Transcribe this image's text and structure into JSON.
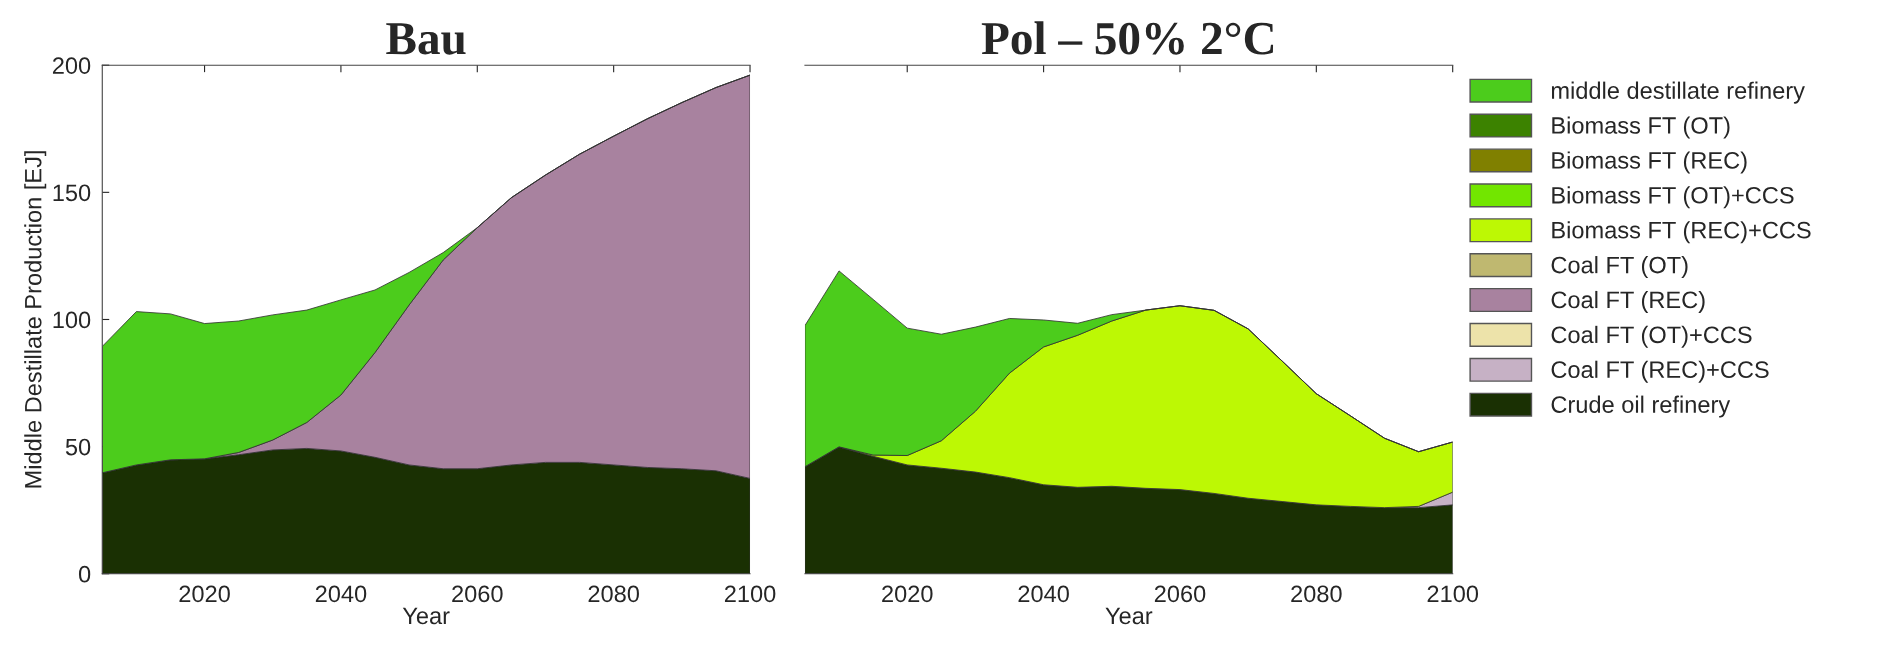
{
  "chart_data": [
    {
      "type": "area",
      "stacked": true,
      "title": "Bau",
      "xlabel": "Year",
      "ylabel": "Middle Destillate Production [EJ]",
      "x": [
        2005,
        2010,
        2015,
        2020,
        2025,
        2030,
        2035,
        2040,
        2045,
        2050,
        2055,
        2060,
        2065,
        2070,
        2075,
        2080,
        2085,
        2090,
        2095,
        2100
      ],
      "xlim": [
        2005,
        2100
      ],
      "xticks": [
        2020,
        2040,
        2060,
        2080,
        2100
      ],
      "ylim": [
        0,
        200
      ],
      "yticks": [
        0,
        50,
        100,
        150,
        200
      ],
      "grid": false,
      "series": [
        {
          "color": "#1a3003",
          "values": [
            39.7,
            42.8,
            44.8,
            45.2,
            46.8,
            48.7,
            49.3,
            48.3,
            45.8,
            42.8,
            41.3,
            41.3,
            42.8,
            43.8,
            43.8,
            42.8,
            41.8,
            41.3,
            40.5,
            37.5
          ]
        },
        {
          "color": "#a8829f",
          "values": [
            0,
            0,
            0,
            0,
            0.9,
            3.9,
            10.2,
            22.0,
            41.2,
            62.9,
            82.1,
            94.8,
            105.1,
            113.0,
            121.2,
            129.3,
            137.2,
            144.0,
            150.7,
            158.6
          ]
        },
        {
          "color": "#4ccc1c",
          "values": [
            49.7,
            60.3,
            57.4,
            53.2,
            51.7,
            49.2,
            44.2,
            37.4,
            24.6,
            12.8,
            2.9,
            0,
            0,
            0,
            0,
            0,
            0,
            0,
            0,
            0
          ]
        }
      ]
    },
    {
      "type": "area",
      "stacked": true,
      "title": "Pol – 50% 2°C",
      "xlabel": "Year",
      "x": [
        2005,
        2010,
        2015,
        2020,
        2025,
        2030,
        2035,
        2040,
        2045,
        2050,
        2055,
        2060,
        2065,
        2070,
        2075,
        2080,
        2085,
        2090,
        2095,
        2100
      ],
      "xlim": [
        2005,
        2100
      ],
      "xticks": [
        2020,
        2040,
        2060,
        2080,
        2100
      ],
      "ylim": [
        0,
        200
      ],
      "yticks": [
        0,
        50,
        100,
        150,
        200
      ],
      "tick_labels": "x",
      "grid": false,
      "legend": "right",
      "series": [
        {
          "name": "Crude oil refinery",
          "color": "#1a3003",
          "values": [
            42.1,
            49.9,
            46.2,
            42.8,
            41.5,
            40.0,
            37.8,
            35.0,
            34.0,
            34.4,
            33.6,
            33.1,
            31.6,
            29.7,
            28.4,
            27.1,
            26.5,
            26.0,
            26.0,
            27.1
          ]
        },
        {
          "name": "Coal FT (REC)+CCS",
          "color": "#c6b1c5",
          "values": [
            0,
            0,
            0,
            0,
            0,
            0,
            0,
            0,
            0,
            0,
            0,
            0,
            0,
            0,
            0,
            0,
            0,
            0,
            0.5,
            5.0
          ]
        },
        {
          "name": "Coal FT (OT)+CCS",
          "color": "#ede3aa",
          "values": [
            null,
            null,
            null,
            null,
            null,
            null,
            null,
            null,
            null,
            null,
            null,
            null,
            null,
            null,
            null,
            null,
            null,
            null,
            null,
            null
          ]
        },
        {
          "name": "Coal FT (REC)",
          "color": "#a8829f",
          "values": [
            null,
            null,
            null,
            null,
            null,
            null,
            null,
            null,
            null,
            null,
            null,
            null,
            null,
            null,
            null,
            null,
            null,
            null,
            null,
            null
          ]
        },
        {
          "name": "Coal FT (OT)",
          "color": "#bfb870",
          "values": [
            null,
            null,
            null,
            null,
            null,
            null,
            null,
            null,
            null,
            null,
            null,
            null,
            null,
            null,
            null,
            null,
            null,
            null,
            null,
            null
          ]
        },
        {
          "name": "Biomass FT (REC)+CCS",
          "color": "#bdf804",
          "values": [
            0,
            0,
            0.5,
            3.7,
            10.8,
            23.9,
            41.1,
            54.2,
            59.8,
            65.0,
            70.1,
            72.3,
            72.0,
            66.6,
            55.2,
            43.7,
            35.6,
            27.3,
            21.5,
            19.7
          ]
        },
        {
          "name": "Biomass FT (OT)+CCS",
          "color": "#72e600",
          "values": [
            null,
            null,
            null,
            null,
            null,
            null,
            null,
            null,
            null,
            null,
            null,
            null,
            null,
            null,
            null,
            null,
            null,
            null,
            null,
            null
          ]
        },
        {
          "name": "Biomass FT (REC)",
          "color": "#808000",
          "values": [
            null,
            null,
            null,
            null,
            null,
            null,
            null,
            null,
            null,
            null,
            null,
            null,
            null,
            null,
            null,
            null,
            null,
            null,
            null,
            null
          ]
        },
        {
          "name": "Biomass FT (OT)",
          "color": "#3c8200",
          "values": [
            null,
            null,
            null,
            null,
            null,
            null,
            null,
            null,
            null,
            null,
            null,
            null,
            null,
            null,
            null,
            null,
            null,
            null,
            null,
            null
          ]
        },
        {
          "name": "middle destillate refinery",
          "color": "#4ccc1c",
          "values": [
            55.5,
            69.2,
            61.2,
            50.1,
            41.9,
            33.1,
            21.5,
            10.6,
            4.7,
            2.5,
            0,
            0,
            0,
            0,
            0,
            0,
            0,
            0,
            0,
            0
          ]
        }
      ]
    }
  ]
}
